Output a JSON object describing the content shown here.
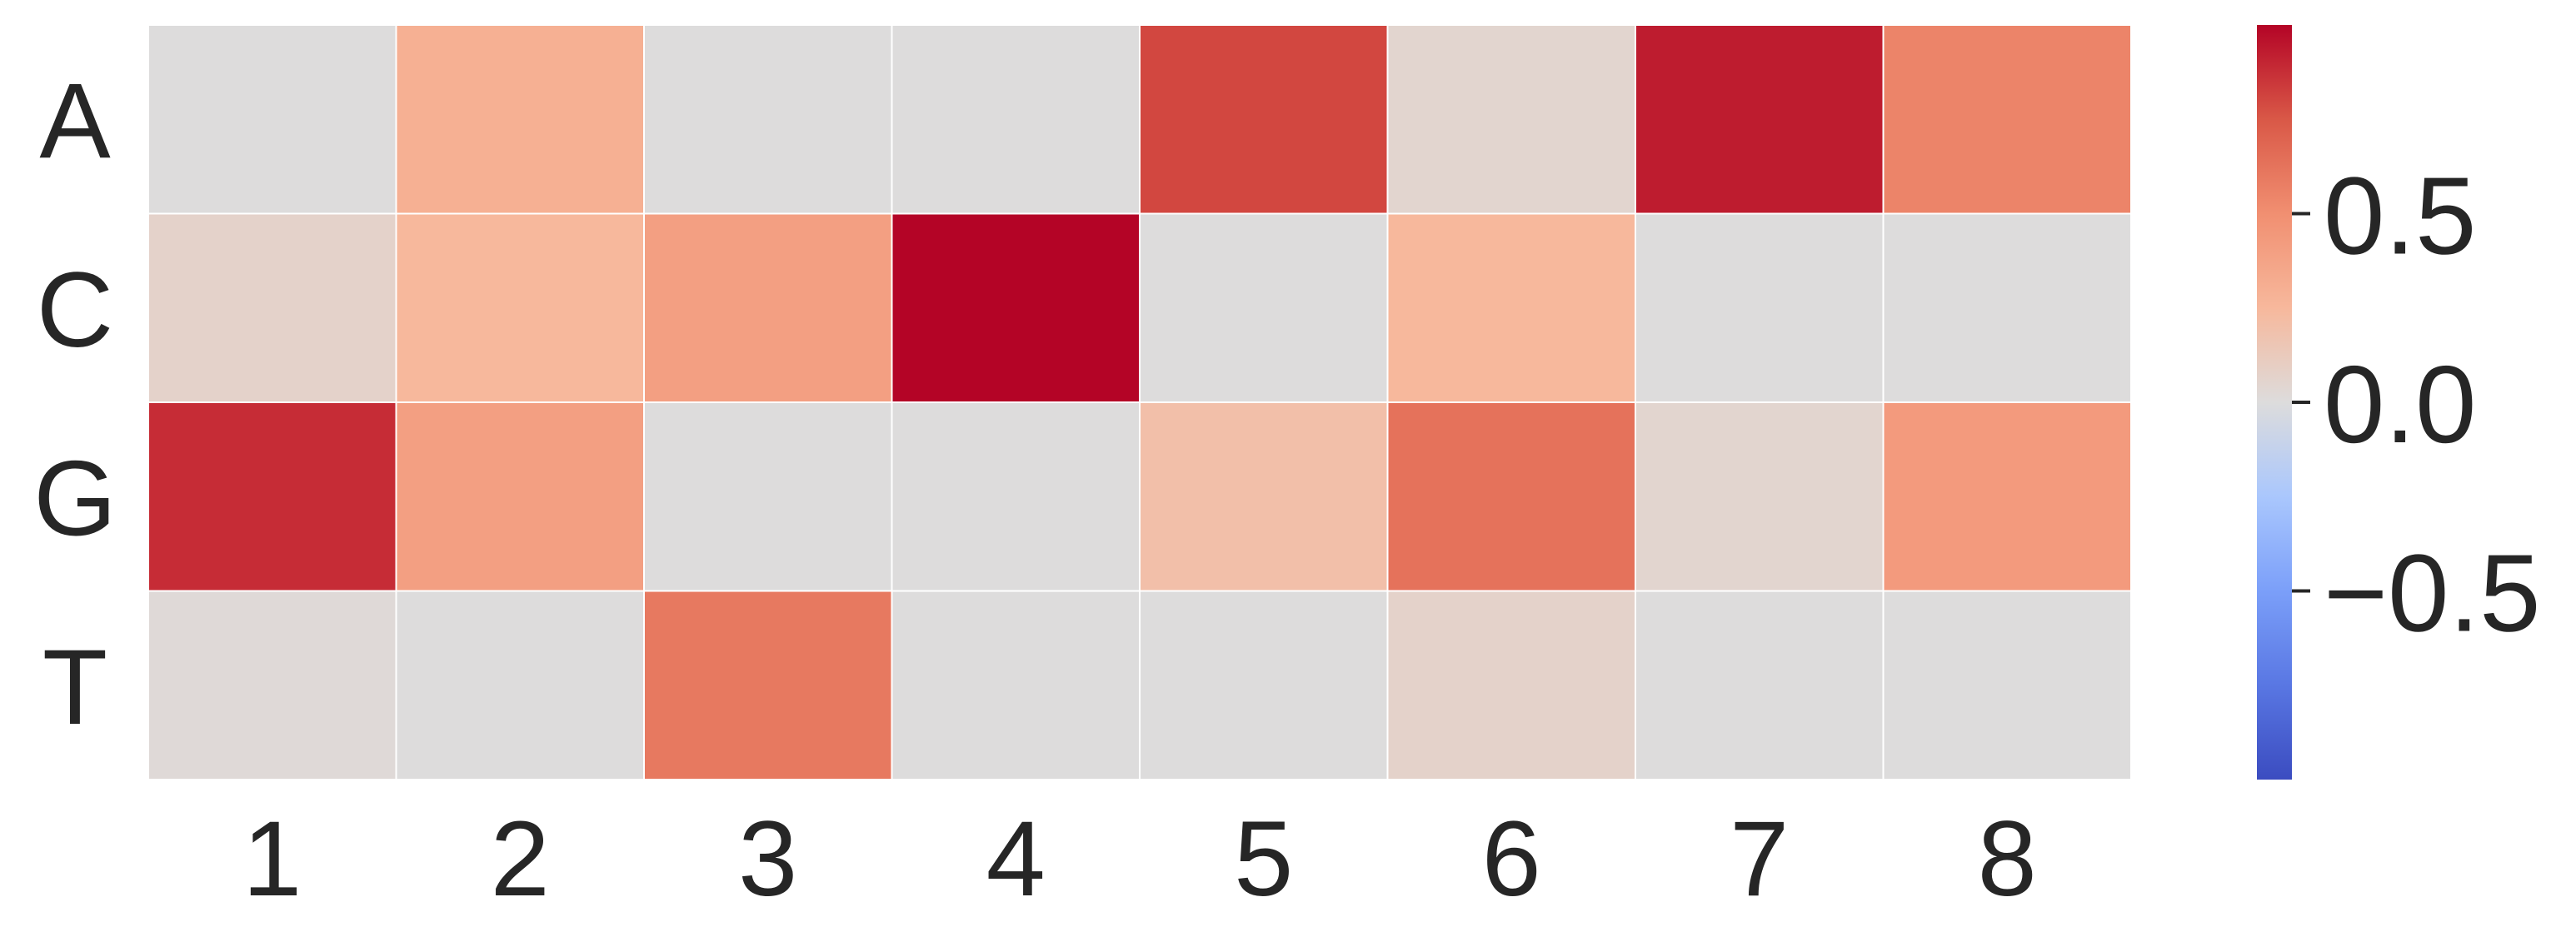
{
  "chart_data": {
    "type": "heatmap",
    "title": "",
    "xlabel": "",
    "ylabel": "",
    "x_categories": [
      "1",
      "2",
      "3",
      "4",
      "5",
      "6",
      "7",
      "8"
    ],
    "y_categories": [
      "A",
      "C",
      "G",
      "T"
    ],
    "values": [
      [
        0.0,
        0.3,
        0.0,
        0.0,
        0.8,
        0.05,
        0.93,
        0.55
      ],
      [
        0.07,
        0.25,
        0.4,
        1.0,
        0.0,
        0.25,
        0.0,
        0.0
      ],
      [
        0.88,
        0.4,
        0.0,
        0.0,
        0.2,
        0.63,
        0.05,
        0.43
      ],
      [
        0.02,
        0.0,
        0.6,
        0.0,
        0.0,
        0.07,
        0.0,
        0.0
      ]
    ],
    "colormap": "coolwarm",
    "vmin": -1.0,
    "vmax": 1.0,
    "colorbar": {
      "ticks": [
        0.5,
        0.0,
        -0.5
      ],
      "tick_labels": [
        "0.5",
        "0.0",
        "−0.5"
      ]
    },
    "grid_lines": true,
    "grid_color": "#ffffff",
    "colors": {
      "low": "#3b4cc0",
      "mid": "#dddddd",
      "high": "#b40426",
      "text": "#262626"
    }
  }
}
